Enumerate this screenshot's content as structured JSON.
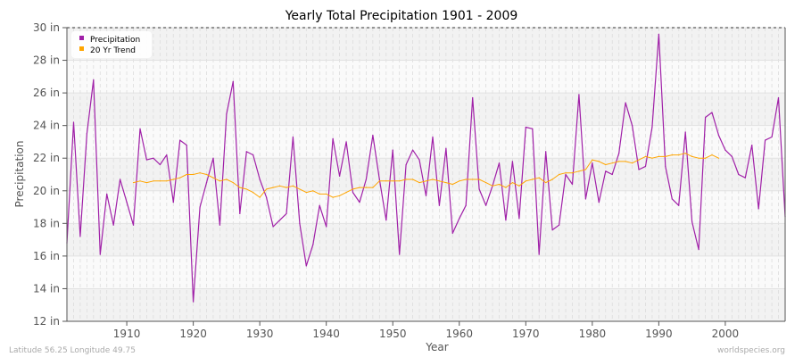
{
  "chart_data": {
    "type": "line",
    "title": "Yearly Total Precipitation 1901 - 2009",
    "xlabel": "Year",
    "ylabel": "Precipitation",
    "xlim": [
      1901,
      2009
    ],
    "ylim": [
      12,
      30
    ],
    "x_ticks": [
      1910,
      1920,
      1930,
      1940,
      1950,
      1960,
      1970,
      1980,
      1990,
      2000
    ],
    "y_ticks": [
      12,
      14,
      16,
      18,
      20,
      22,
      24,
      26,
      28,
      30
    ],
    "y_tick_labels": [
      "12 in",
      "14 in",
      "16 in",
      "18 in",
      "20 in",
      "22 in",
      "24 in",
      "26 in",
      "28 in",
      "30 in"
    ],
    "grid": true,
    "legend_position": "top-left",
    "series": [
      {
        "name": "Precipitation",
        "color": "#a020a8",
        "x_start": 1901,
        "values": [
          16.8,
          24.2,
          17.2,
          23.5,
          26.8,
          16.1,
          19.8,
          17.9,
          20.7,
          19.3,
          17.9,
          23.8,
          21.9,
          22.0,
          21.6,
          22.2,
          19.3,
          23.1,
          22.8,
          13.2,
          19.0,
          20.5,
          22.0,
          17.9,
          24.7,
          26.7,
          18.6,
          22.4,
          22.2,
          20.7,
          19.6,
          17.8,
          18.2,
          18.6,
          23.3,
          18.0,
          15.4,
          16.7,
          19.1,
          17.8,
          23.2,
          20.9,
          23.0,
          19.9,
          19.3,
          20.7,
          23.4,
          20.7,
          18.2,
          22.5,
          16.1,
          21.6,
          22.5,
          21.9,
          19.7,
          23.3,
          19.1,
          22.6,
          17.4,
          18.3,
          19.1,
          25.7,
          20.1,
          19.1,
          20.3,
          21.7,
          18.2,
          21.8,
          18.3,
          23.9,
          23.8,
          16.1,
          22.4,
          17.6,
          17.9,
          21.0,
          20.4,
          25.9,
          19.5,
          21.7,
          19.3,
          21.2,
          21.0,
          22.3,
          25.4,
          24.0,
          21.3,
          21.5,
          23.9,
          29.6,
          21.5,
          19.5,
          19.1,
          23.6,
          18.1,
          16.4,
          24.5,
          24.8,
          23.4,
          22.5,
          22.1,
          21.0,
          20.8,
          22.8,
          18.9,
          23.1,
          23.3,
          25.7,
          18.4
        ]
      },
      {
        "name": "20 Yr Trend",
        "color": "#ffa500",
        "x_start": 1911,
        "values": [
          20.5,
          20.6,
          20.5,
          20.6,
          20.6,
          20.6,
          20.7,
          20.8,
          21.0,
          21.0,
          21.1,
          21.0,
          20.8,
          20.6,
          20.7,
          20.5,
          20.2,
          20.1,
          19.9,
          19.6,
          20.1,
          20.2,
          20.3,
          20.2,
          20.3,
          20.1,
          19.9,
          20.0,
          19.8,
          19.8,
          19.6,
          19.7,
          19.9,
          20.1,
          20.2,
          20.2,
          20.2,
          20.6,
          20.6,
          20.6,
          20.6,
          20.7,
          20.7,
          20.5,
          20.6,
          20.7,
          20.6,
          20.5,
          20.4,
          20.6,
          20.7,
          20.7,
          20.7,
          20.5,
          20.3,
          20.4,
          20.2,
          20.5,
          20.3,
          20.6,
          20.7,
          20.8,
          20.5,
          20.7,
          21.0,
          21.1,
          21.1,
          21.2,
          21.3,
          21.9,
          21.8,
          21.6,
          21.7,
          21.8,
          21.8,
          21.7,
          21.9,
          22.1,
          22.0,
          22.1,
          22.1,
          22.2,
          22.2,
          22.3,
          22.1,
          22.0,
          22.0,
          22.2,
          22.0
        ]
      }
    ]
  },
  "footer": {
    "location": "Latitude 56.25 Longitude 49.75",
    "source": "worldspecies.org"
  }
}
